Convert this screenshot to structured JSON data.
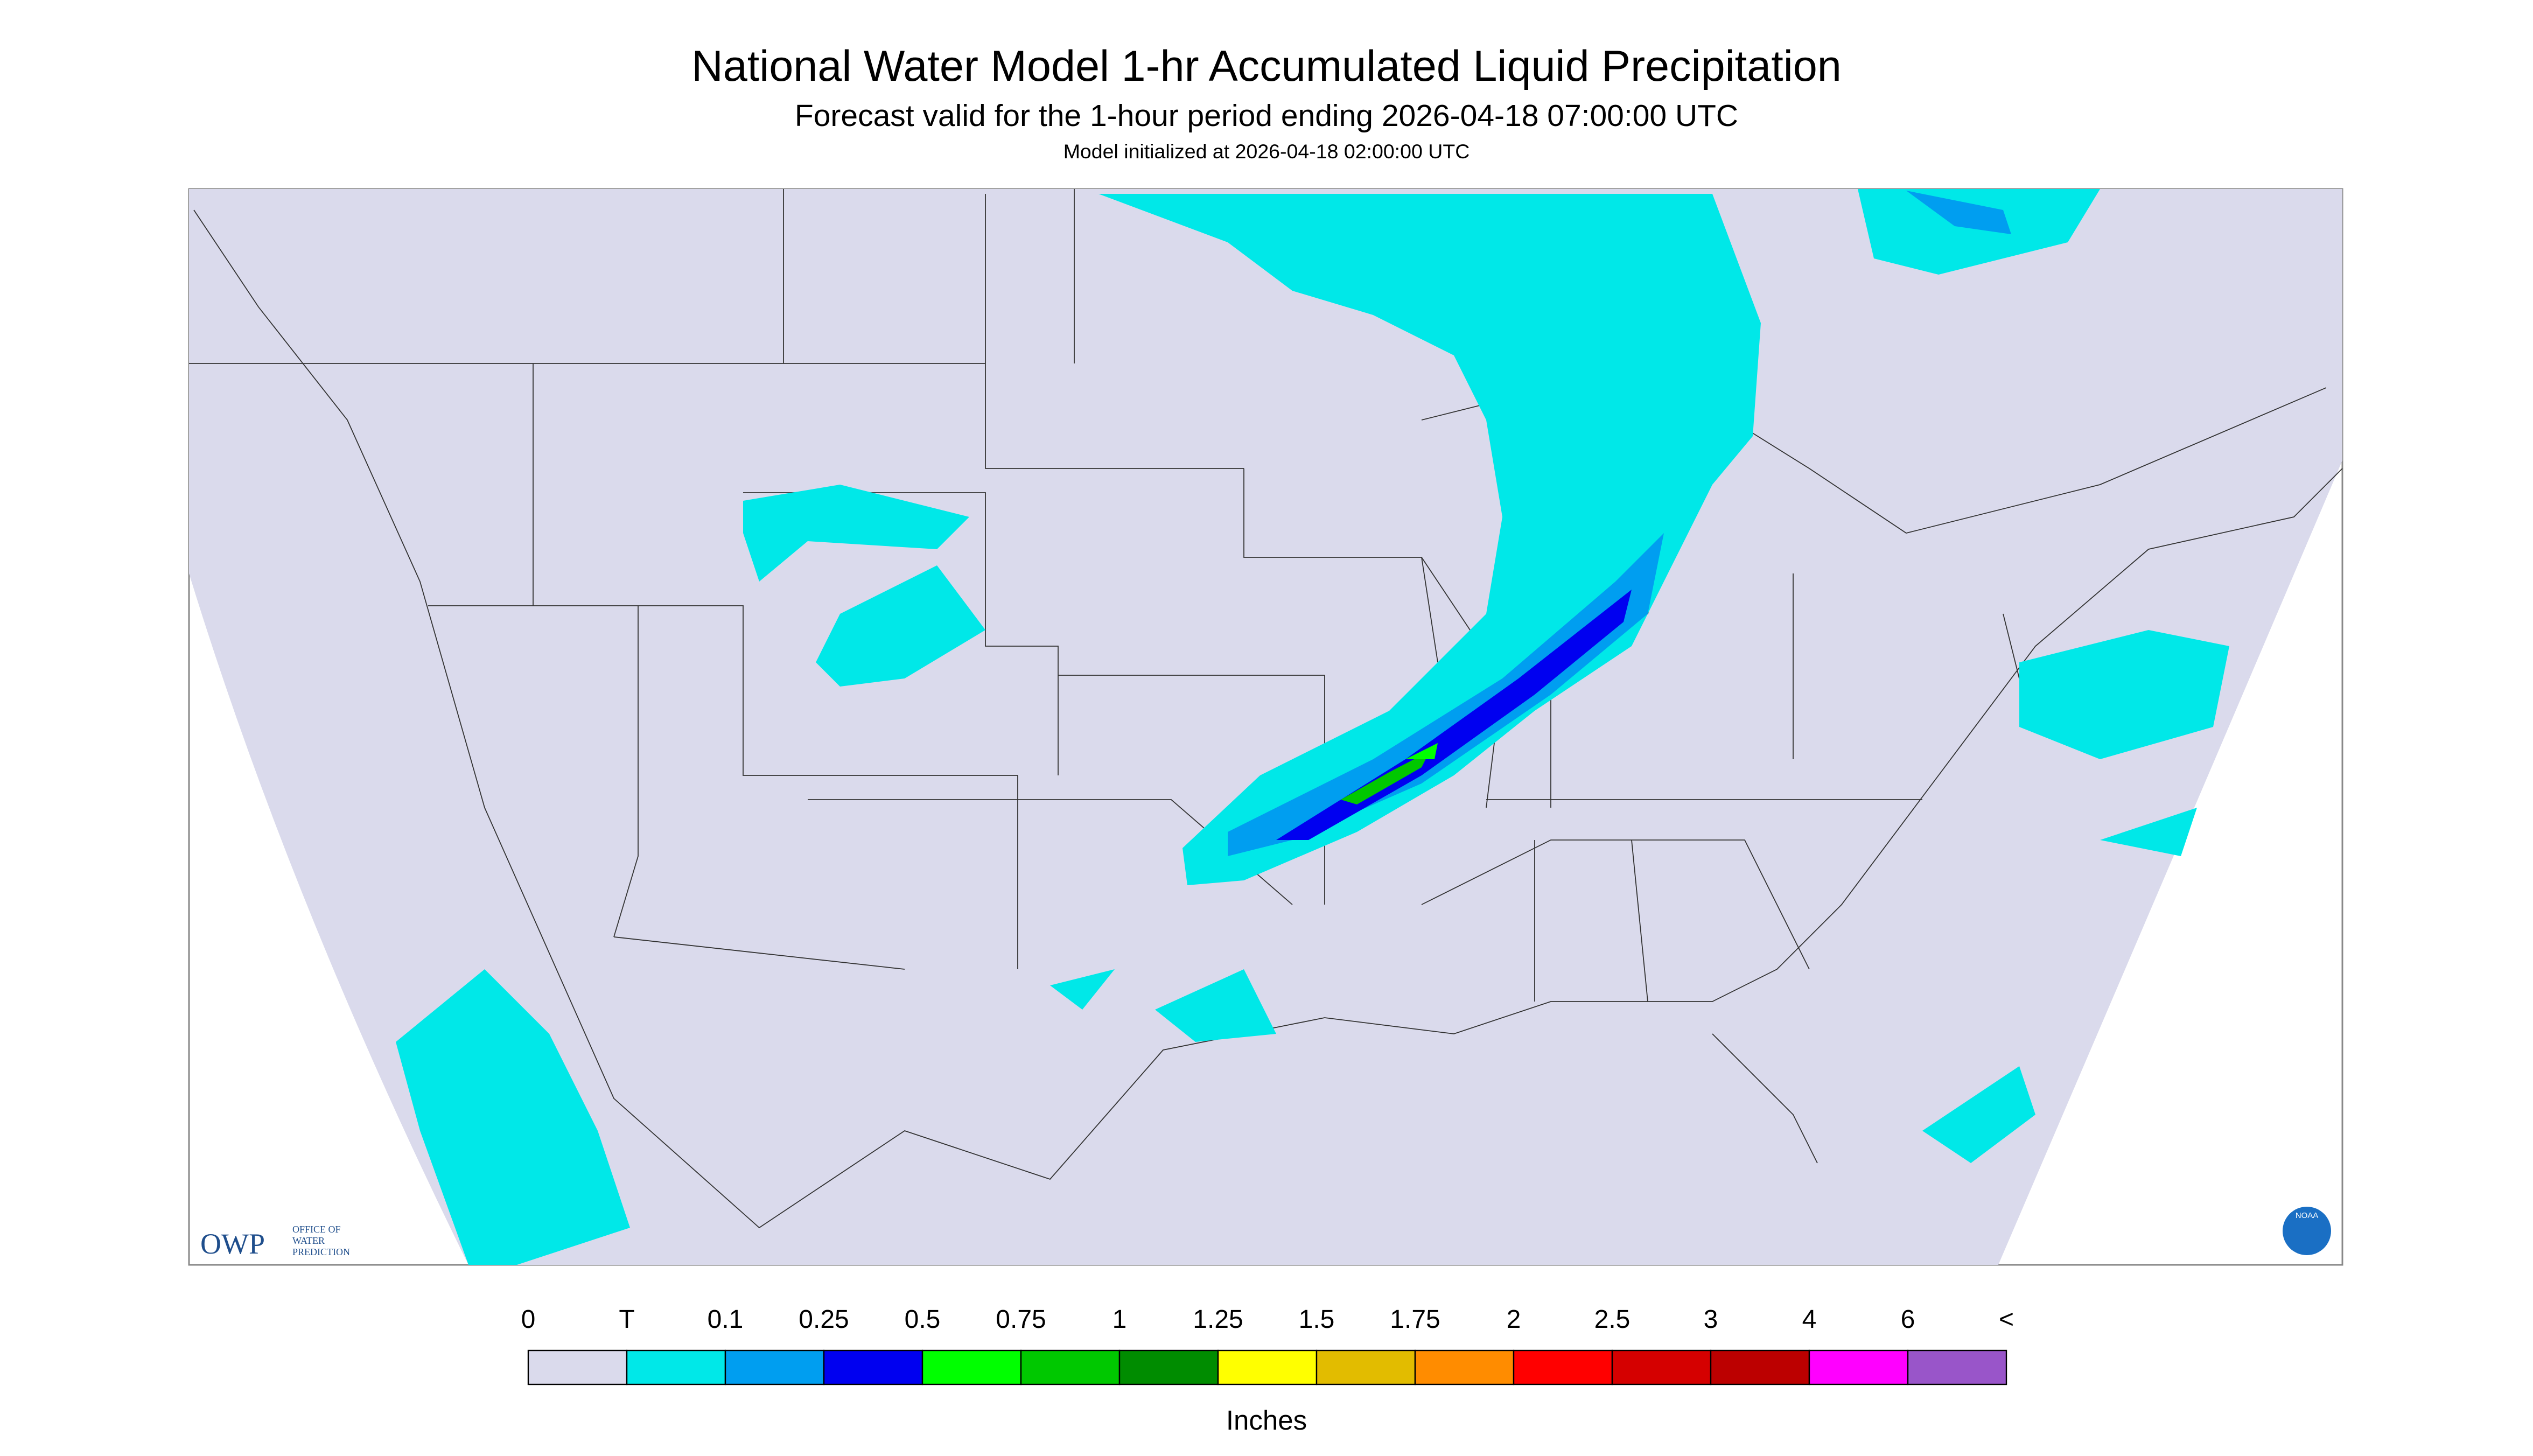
{
  "header": {
    "title": "National Water Model 1-hr Accumulated Liquid Precipitation",
    "subtitle": "Forecast valid for the 1-hour period ending 2026-04-18 07:00:00 UTC",
    "initialized": "Model initialized at 2026-04-18 02:00:00 UTC"
  },
  "logo": {
    "acronym": "OWP",
    "line1": "OFFICE OF",
    "line2": "WATER",
    "line3": "PREDICTION",
    "agency": "NOAA"
  },
  "legend": {
    "labels": [
      "0",
      "T",
      "0.1",
      "0.25",
      "0.5",
      "0.75",
      "1",
      "1.25",
      "1.5",
      "1.75",
      "2",
      "2.5",
      "3",
      "4",
      "6",
      "<"
    ],
    "colors": [
      "#dadaec",
      "#00e8e8",
      "#009ef0",
      "#0000f0",
      "#00ff00",
      "#00c800",
      "#008c00",
      "#ffff00",
      "#e2bc00",
      "#ff8c00",
      "#ff0000",
      "#d50000",
      "#bc0000",
      "#ff00ff",
      "#9955c9"
    ],
    "unit": "Inches"
  }
}
